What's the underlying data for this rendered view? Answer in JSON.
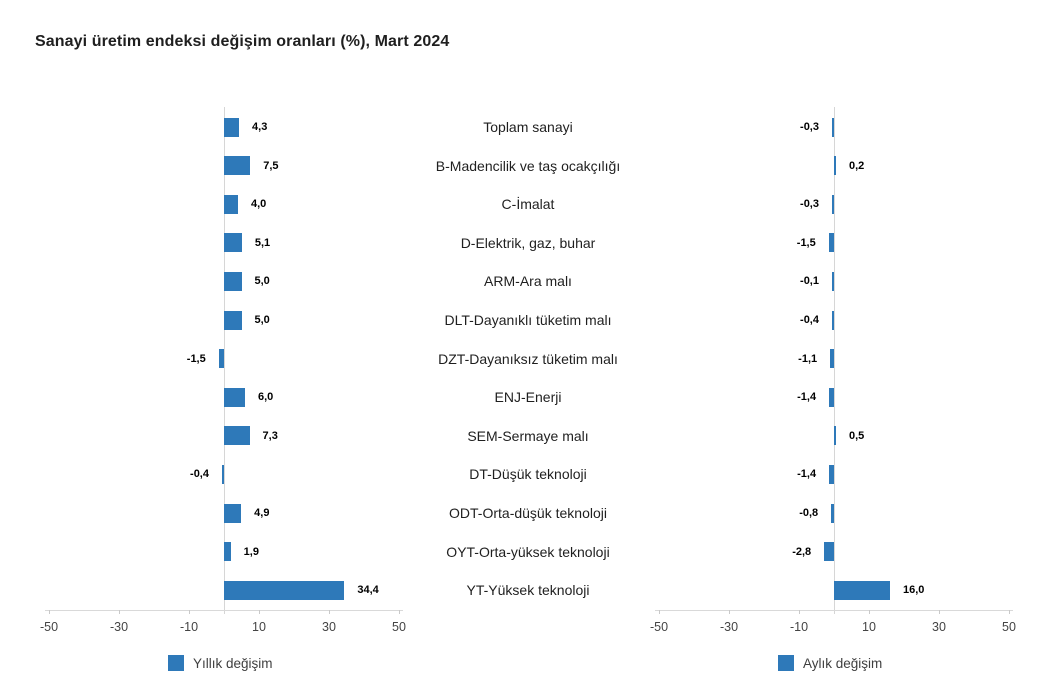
{
  "title": "Sanayi üretim endeksi değişim oranları (%), Mart 2024",
  "colors": {
    "bar": "#2e79b9",
    "axis": "#d9d9d9",
    "title_text": "#1f1f1f",
    "value_text": "#000000",
    "tick_text": "#444444"
  },
  "chart_data": {
    "type": "bar",
    "orientation": "horizontal",
    "title": "Sanayi üretim endeksi değişim oranları (%), Mart 2024",
    "categories": [
      "Toplam sanayi",
      "B-Madencilik ve taş ocakçılığı",
      "C-İmalat",
      "D-Elektrik, gaz, buhar",
      "ARM-Ara malı",
      "DLT-Dayanıklı tüketim malı",
      "DZT-Dayanıksız tüketim malı",
      "ENJ-Enerji",
      "SEM-Sermaye malı",
      "DT-Düşük teknoloji",
      "ODT-Orta-düşük teknoloji",
      "OYT-Orta-yüksek teknoloji",
      "YT-Yüksek teknoloji"
    ],
    "series": [
      {
        "name": "Yıllık değişim",
        "values": [
          4.3,
          7.5,
          4.0,
          5.1,
          5.0,
          5.0,
          -1.5,
          6.0,
          7.3,
          -0.4,
          4.9,
          1.9,
          34.4
        ],
        "labels": [
          "4,3",
          "7,5",
          "4,0",
          "5,1",
          "5,0",
          "5,0",
          "-1,5",
          "6,0",
          "7,3",
          "-0,4",
          "4,9",
          "1,9",
          "34,4"
        ]
      },
      {
        "name": "Aylık değişim",
        "values": [
          -0.3,
          0.2,
          -0.3,
          -1.5,
          -0.1,
          -0.4,
          -1.1,
          -1.4,
          0.5,
          -1.4,
          -0.8,
          -2.8,
          16.0
        ],
        "labels": [
          "-0,3",
          "0,2",
          "-0,3",
          "-1,5",
          "-0,1",
          "-0,4",
          "-1,1",
          "-1,4",
          "0,5",
          "-1,4",
          "-0,8",
          "-2,8",
          "16,0"
        ]
      }
    ],
    "xlim": [
      -50,
      50
    ],
    "x_tick_values": [
      -50,
      -30,
      -10,
      10,
      30,
      50
    ],
    "x_tick_labels": [
      "-50",
      "-30",
      "-10",
      "10",
      "30",
      "50"
    ],
    "grid": false,
    "legend_position": "bottom",
    "bar_color": "#2e79b9"
  }
}
